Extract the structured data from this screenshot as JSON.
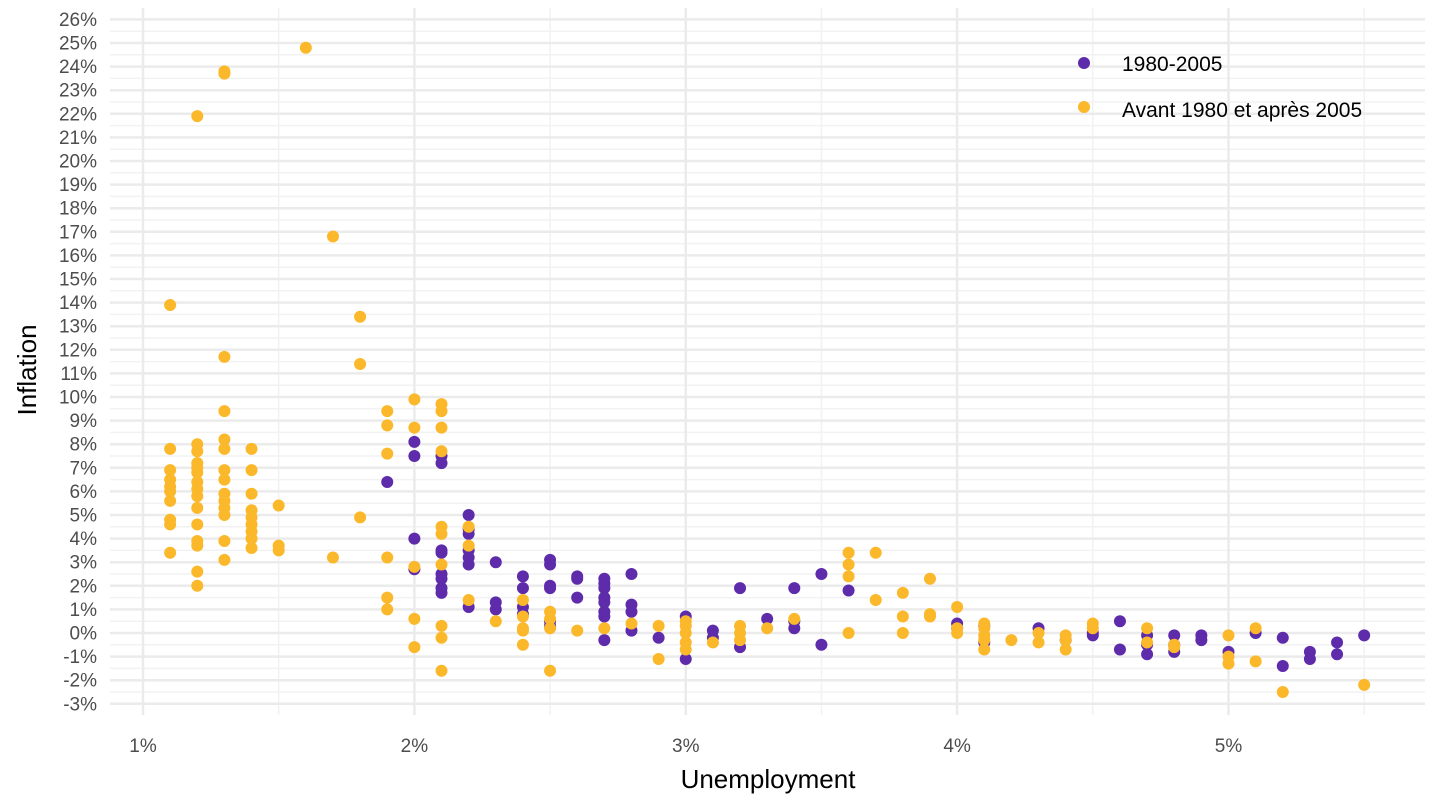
{
  "chart_data": {
    "type": "scatter",
    "title": "",
    "xlabel": "Unemployment",
    "ylabel": "Inflation",
    "xlim": [
      0.9,
      5.7
    ],
    "ylim": [
      -3.5,
      26.2
    ],
    "x_ticks": [
      1,
      2,
      3,
      4,
      5
    ],
    "x_tick_labels": [
      "1%",
      "2%",
      "3%",
      "4%",
      "5%"
    ],
    "y_ticks": [
      -3,
      -2,
      -1,
      0,
      1,
      2,
      3,
      4,
      5,
      6,
      7,
      8,
      9,
      10,
      11,
      12,
      13,
      14,
      15,
      16,
      17,
      18,
      19,
      20,
      21,
      22,
      23,
      24,
      25,
      26
    ],
    "y_tick_labels": [
      "-3%",
      "-2%",
      "-1%",
      "0%",
      "1%",
      "2%",
      "3%",
      "4%",
      "5%",
      "6%",
      "7%",
      "8%",
      "9%",
      "10%",
      "11%",
      "12%",
      "13%",
      "14%",
      "15%",
      "16%",
      "17%",
      "18%",
      "19%",
      "20%",
      "21%",
      "22%",
      "23%",
      "24%",
      "25%",
      "26%"
    ],
    "grid": true,
    "legend_position": "top-right",
    "series": [
      {
        "name": "1980-2005",
        "color": "#5e2bab",
        "points": [
          [
            1.9,
            6.4
          ],
          [
            2.0,
            8.1
          ],
          [
            2.0,
            7.5
          ],
          [
            2.0,
            4.0
          ],
          [
            2.0,
            2.7
          ],
          [
            2.1,
            7.5
          ],
          [
            2.1,
            7.2
          ],
          [
            2.1,
            3.5
          ],
          [
            2.1,
            3.4
          ],
          [
            2.1,
            2.5
          ],
          [
            2.1,
            2.3
          ],
          [
            2.1,
            1.9
          ],
          [
            2.1,
            1.7
          ],
          [
            2.2,
            5.0
          ],
          [
            2.2,
            4.4
          ],
          [
            2.2,
            4.2
          ],
          [
            2.2,
            3.5
          ],
          [
            2.2,
            3.2
          ],
          [
            2.2,
            2.9
          ],
          [
            2.2,
            1.1
          ],
          [
            2.3,
            3.0
          ],
          [
            2.3,
            1.3
          ],
          [
            2.3,
            1.0
          ],
          [
            2.4,
            2.4
          ],
          [
            2.4,
            1.9
          ],
          [
            2.4,
            1.1
          ],
          [
            2.4,
            0.8
          ],
          [
            2.5,
            3.1
          ],
          [
            2.5,
            2.9
          ],
          [
            2.5,
            2.0
          ],
          [
            2.5,
            1.9
          ],
          [
            2.5,
            0.5
          ],
          [
            2.5,
            0.3
          ],
          [
            2.6,
            2.4
          ],
          [
            2.6,
            2.3
          ],
          [
            2.6,
            1.5
          ],
          [
            2.7,
            2.3
          ],
          [
            2.7,
            2.1
          ],
          [
            2.7,
            1.9
          ],
          [
            2.7,
            1.5
          ],
          [
            2.7,
            1.3
          ],
          [
            2.7,
            0.9
          ],
          [
            2.7,
            0.7
          ],
          [
            2.7,
            -0.3
          ],
          [
            2.8,
            2.5
          ],
          [
            2.8,
            1.2
          ],
          [
            2.8,
            0.9
          ],
          [
            2.8,
            0.1
          ],
          [
            2.9,
            -0.2
          ],
          [
            3.0,
            0.7
          ],
          [
            3.0,
            -1.1
          ],
          [
            3.1,
            0.1
          ],
          [
            3.1,
            -0.2
          ],
          [
            3.2,
            1.9
          ],
          [
            3.2,
            -0.6
          ],
          [
            3.3,
            0.6
          ],
          [
            3.4,
            1.9
          ],
          [
            3.4,
            0.2
          ],
          [
            3.4,
            0.5
          ],
          [
            3.5,
            2.5
          ],
          [
            3.5,
            -0.5
          ],
          [
            3.6,
            1.8
          ],
          [
            4.0,
            0.4
          ],
          [
            4.0,
            0.2
          ],
          [
            4.1,
            0.3
          ],
          [
            4.1,
            -0.4
          ],
          [
            4.3,
            0.2
          ],
          [
            4.4,
            -0.3
          ],
          [
            4.5,
            0.0
          ],
          [
            4.5,
            -0.1
          ],
          [
            4.6,
            0.5
          ],
          [
            4.6,
            -0.7
          ],
          [
            4.7,
            -0.1
          ],
          [
            4.7,
            -0.5
          ],
          [
            4.7,
            -0.9
          ],
          [
            4.8,
            -0.1
          ],
          [
            4.8,
            -0.5
          ],
          [
            4.8,
            -0.8
          ],
          [
            4.9,
            -0.1
          ],
          [
            4.9,
            -0.3
          ],
          [
            5.0,
            -0.8
          ],
          [
            5.1,
            0.0
          ],
          [
            5.2,
            -0.2
          ],
          [
            5.2,
            -1.4
          ],
          [
            5.3,
            -0.8
          ],
          [
            5.3,
            -1.1
          ],
          [
            5.4,
            -0.4
          ],
          [
            5.4,
            -0.9
          ],
          [
            5.5,
            -0.1
          ]
        ]
      },
      {
        "name": "Avant 1980 et après 2005",
        "color": "#fbb82b",
        "points": [
          [
            1.1,
            13.9
          ],
          [
            1.1,
            7.8
          ],
          [
            1.1,
            6.9
          ],
          [
            1.1,
            6.5
          ],
          [
            1.1,
            6.2
          ],
          [
            1.1,
            6.0
          ],
          [
            1.1,
            5.6
          ],
          [
            1.1,
            4.8
          ],
          [
            1.1,
            4.6
          ],
          [
            1.1,
            3.4
          ],
          [
            1.2,
            21.9
          ],
          [
            1.2,
            8.0
          ],
          [
            1.2,
            7.7
          ],
          [
            1.2,
            7.2
          ],
          [
            1.2,
            7.0
          ],
          [
            1.2,
            6.8
          ],
          [
            1.2,
            6.4
          ],
          [
            1.2,
            6.1
          ],
          [
            1.2,
            5.8
          ],
          [
            1.2,
            5.3
          ],
          [
            1.2,
            4.6
          ],
          [
            1.2,
            3.9
          ],
          [
            1.2,
            3.7
          ],
          [
            1.2,
            2.6
          ],
          [
            1.2,
            2.0
          ],
          [
            1.3,
            23.8
          ],
          [
            1.3,
            23.7
          ],
          [
            1.3,
            11.7
          ],
          [
            1.3,
            9.4
          ],
          [
            1.3,
            8.2
          ],
          [
            1.3,
            7.8
          ],
          [
            1.3,
            6.9
          ],
          [
            1.3,
            6.5
          ],
          [
            1.3,
            5.9
          ],
          [
            1.3,
            5.6
          ],
          [
            1.3,
            5.3
          ],
          [
            1.3,
            5.0
          ],
          [
            1.3,
            3.9
          ],
          [
            1.3,
            3.1
          ],
          [
            1.4,
            7.8
          ],
          [
            1.4,
            6.9
          ],
          [
            1.4,
            5.9
          ],
          [
            1.4,
            5.2
          ],
          [
            1.4,
            4.9
          ],
          [
            1.4,
            4.6
          ],
          [
            1.4,
            4.3
          ],
          [
            1.4,
            4.0
          ],
          [
            1.4,
            3.6
          ],
          [
            1.5,
            5.4
          ],
          [
            1.5,
            3.7
          ],
          [
            1.5,
            3.5
          ],
          [
            1.6,
            24.8
          ],
          [
            1.7,
            16.8
          ],
          [
            1.7,
            3.2
          ],
          [
            1.8,
            13.4
          ],
          [
            1.8,
            11.4
          ],
          [
            1.8,
            4.9
          ],
          [
            1.9,
            9.4
          ],
          [
            1.9,
            8.8
          ],
          [
            1.9,
            7.6
          ],
          [
            1.9,
            3.2
          ],
          [
            1.9,
            1.5
          ],
          [
            1.9,
            1.0
          ],
          [
            2.0,
            9.9
          ],
          [
            2.0,
            8.7
          ],
          [
            2.0,
            2.8
          ],
          [
            2.0,
            0.6
          ],
          [
            2.0,
            -0.6
          ],
          [
            2.1,
            9.7
          ],
          [
            2.1,
            9.4
          ],
          [
            2.1,
            8.7
          ],
          [
            2.1,
            7.7
          ],
          [
            2.1,
            4.5
          ],
          [
            2.1,
            4.2
          ],
          [
            2.1,
            2.9
          ],
          [
            2.1,
            0.3
          ],
          [
            2.1,
            -0.2
          ],
          [
            2.1,
            -1.6
          ],
          [
            2.2,
            4.5
          ],
          [
            2.2,
            3.7
          ],
          [
            2.2,
            1.4
          ],
          [
            2.3,
            0.5
          ],
          [
            2.4,
            1.4
          ],
          [
            2.4,
            0.7
          ],
          [
            2.4,
            0.2
          ],
          [
            2.4,
            0.1
          ],
          [
            2.4,
            -0.5
          ],
          [
            2.5,
            0.9
          ],
          [
            2.5,
            0.6
          ],
          [
            2.5,
            0.2
          ],
          [
            2.5,
            -1.6
          ],
          [
            2.6,
            0.1
          ],
          [
            2.7,
            0.2
          ],
          [
            2.8,
            0.4
          ],
          [
            2.9,
            0.3
          ],
          [
            2.9,
            -1.1
          ],
          [
            3.0,
            0.5
          ],
          [
            3.0,
            0.3
          ],
          [
            3.0,
            0.0
          ],
          [
            3.0,
            -0.4
          ],
          [
            3.0,
            -0.7
          ],
          [
            3.1,
            -0.4
          ],
          [
            3.2,
            0.3
          ],
          [
            3.2,
            0.0
          ],
          [
            3.2,
            -0.3
          ],
          [
            3.3,
            0.2
          ],
          [
            3.4,
            0.6
          ],
          [
            3.6,
            3.4
          ],
          [
            3.6,
            2.9
          ],
          [
            3.6,
            2.4
          ],
          [
            3.6,
            0.0
          ],
          [
            3.7,
            3.4
          ],
          [
            3.7,
            1.4
          ],
          [
            3.8,
            1.7
          ],
          [
            3.8,
            0.7
          ],
          [
            3.8,
            0.0
          ],
          [
            3.9,
            2.3
          ],
          [
            3.9,
            0.8
          ],
          [
            3.9,
            0.7
          ],
          [
            4.0,
            1.1
          ],
          [
            4.0,
            0.2
          ],
          [
            4.0,
            0.0
          ],
          [
            4.1,
            0.4
          ],
          [
            4.1,
            0.2
          ],
          [
            4.1,
            -0.1
          ],
          [
            4.1,
            -0.3
          ],
          [
            4.1,
            -0.7
          ],
          [
            4.2,
            -0.3
          ],
          [
            4.3,
            0.0
          ],
          [
            4.3,
            -0.4
          ],
          [
            4.4,
            -0.1
          ],
          [
            4.4,
            -0.3
          ],
          [
            4.4,
            -0.7
          ],
          [
            4.5,
            0.4
          ],
          [
            4.5,
            0.2
          ],
          [
            4.7,
            0.2
          ],
          [
            4.7,
            -0.4
          ],
          [
            4.8,
            -0.5
          ],
          [
            4.8,
            -0.6
          ],
          [
            5.0,
            -0.1
          ],
          [
            5.0,
            -1.0
          ],
          [
            5.0,
            -1.3
          ],
          [
            5.1,
            0.2
          ],
          [
            5.1,
            -1.2
          ],
          [
            5.2,
            -2.5
          ],
          [
            5.5,
            -2.2
          ]
        ]
      }
    ]
  }
}
